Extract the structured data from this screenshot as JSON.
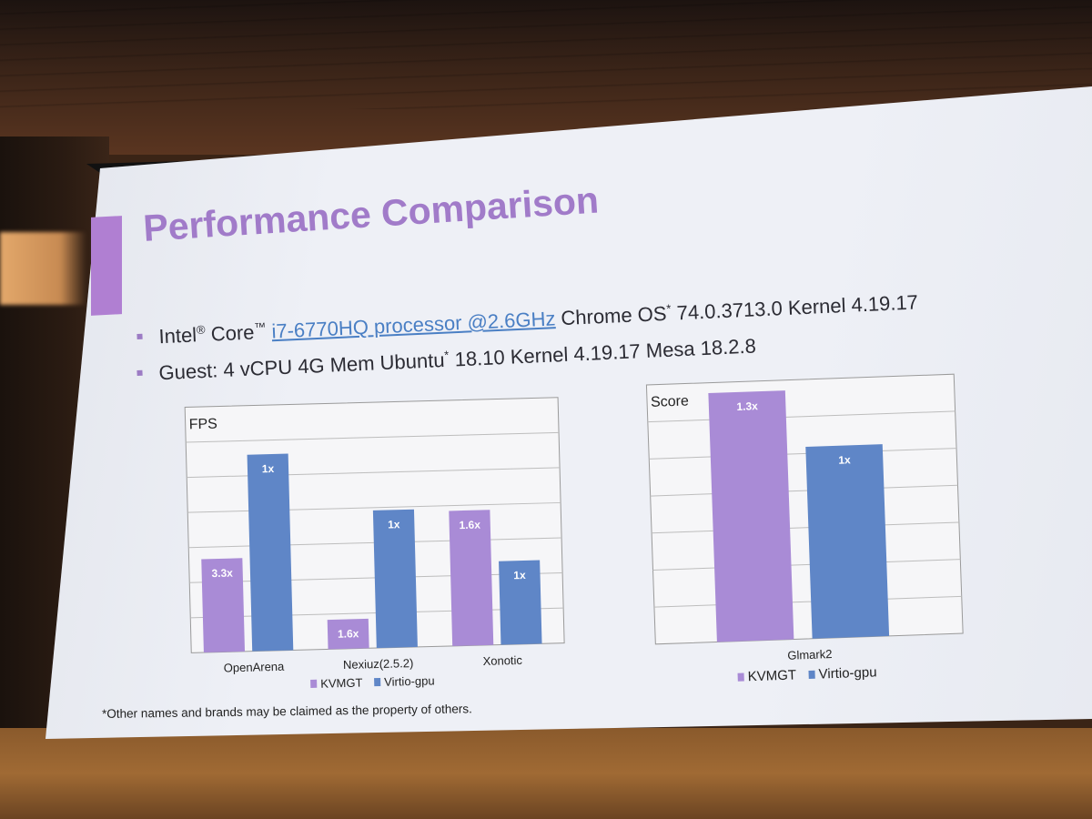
{
  "slide": {
    "title": "Performance Comparison",
    "bullets": [
      {
        "pre": "Intel",
        "reg": "®",
        "core": " Core",
        "tm": "™",
        "link": "i7-6770HQ processor @2.6GHz",
        "mid": " Chrome OS",
        "star": "*",
        "post": " 74.0.3713.0 Kernel 4.19.17"
      },
      {
        "pre": "Guest: 4 vCPU 4G Mem Ubuntu",
        "star": "*",
        "post": " 18.10 Kernel 4.19.17 Mesa 18.2.8"
      }
    ],
    "footnote": "*Other names and brands may be claimed as the property of others."
  },
  "colors": {
    "kvmgt": "#a98bd6",
    "virtio": "#5f86c7",
    "title": "#a17bc9"
  },
  "chart_data": [
    {
      "type": "bar",
      "ylabel": "FPS",
      "categories": [
        "OpenArena",
        "Nexiuz(2.5.2)",
        "Xonotic"
      ],
      "series": [
        {
          "name": "KVMGT",
          "values": [
            3.3,
            1.6,
            1.6
          ],
          "labels": [
            "3.3x",
            "1.6x",
            "1.6x"
          ]
        },
        {
          "name": "Virtio-gpu",
          "values": [
            1,
            1,
            1
          ],
          "labels": [
            "1x",
            "1x",
            "1x"
          ]
        }
      ],
      "bar_heights_relative": [
        [
          0.38,
          0.8
        ],
        [
          0.12,
          0.56
        ],
        [
          0.55,
          0.34
        ]
      ],
      "grid": true,
      "legend": "bottom"
    },
    {
      "type": "bar",
      "ylabel": "Score",
      "categories": [
        "Glmark2"
      ],
      "series": [
        {
          "name": "KVMGT",
          "values": [
            1.3
          ],
          "labels": [
            "1.3x"
          ]
        },
        {
          "name": "Virtio-gpu",
          "values": [
            1
          ],
          "labels": [
            "1x"
          ]
        }
      ],
      "bar_heights_relative": [
        [
          0.96,
          0.74
        ]
      ],
      "grid": true,
      "legend": "bottom"
    }
  ]
}
